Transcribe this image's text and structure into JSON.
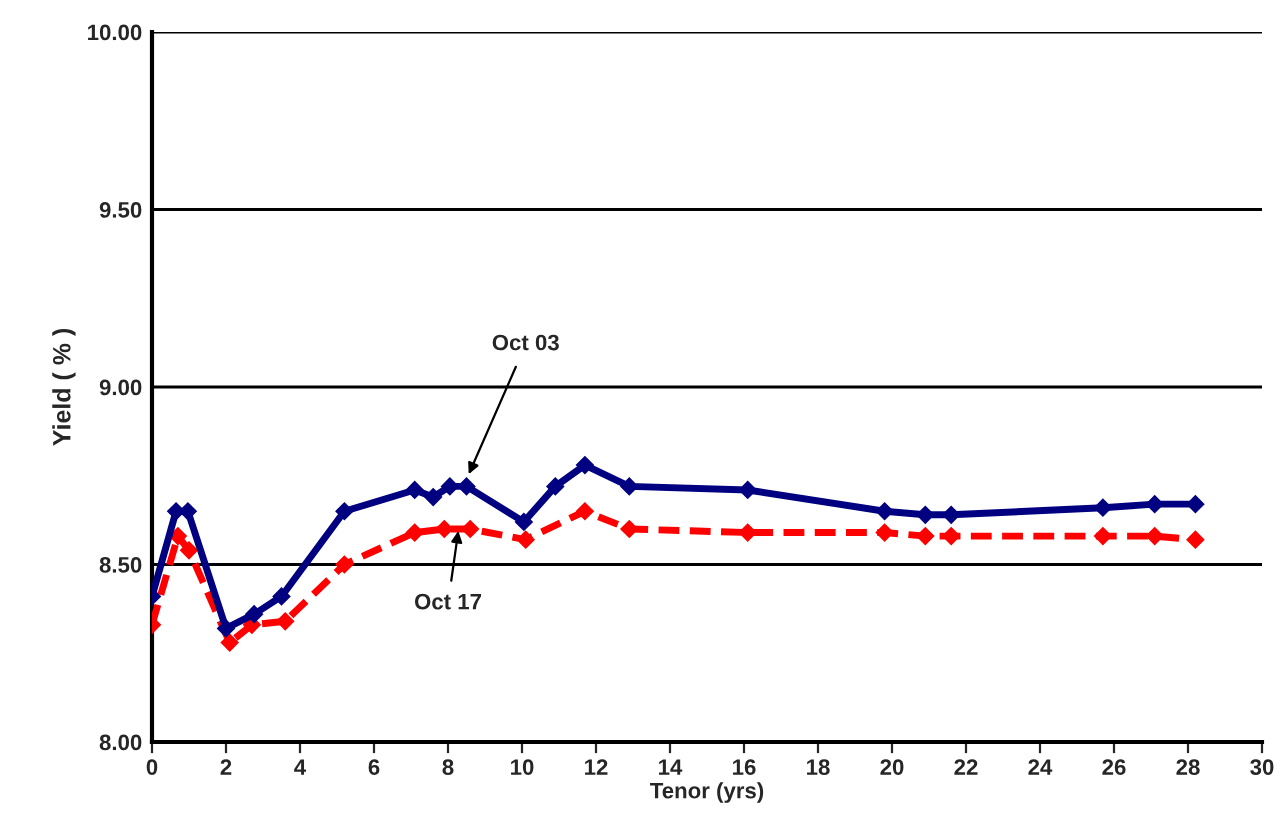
{
  "chart_data": {
    "type": "line",
    "xlabel": "Tenor (yrs)",
    "ylabel": "Yield ( % )",
    "xlim": [
      0,
      30
    ],
    "xticks": [
      0,
      2,
      4,
      6,
      8,
      10,
      12,
      14,
      16,
      18,
      20,
      22,
      24,
      26,
      28,
      30
    ],
    "ylim": [
      8.0,
      10.0
    ],
    "yticks": [
      {
        "value": 8.0,
        "label": "8.00"
      },
      {
        "value": 8.5,
        "label": "8.50"
      },
      {
        "value": 9.0,
        "label": "9.00"
      },
      {
        "value": 9.5,
        "label": "9.50"
      },
      {
        "value": 10.0,
        "label": "10.00"
      }
    ],
    "grid": "y",
    "marker": "diamond",
    "series": [
      {
        "color": "#000080",
        "line_style": "solid",
        "x": [
          0,
          0.65,
          0.97,
          2.0,
          2.76,
          3.5,
          5.2,
          7.1,
          7.6,
          8.05,
          8.5,
          10.05,
          10.9,
          11.7,
          12.9,
          16.1,
          19.8,
          20.9,
          21.6,
          25.7,
          27.1,
          28.2
        ],
        "values": [
          8.41,
          8.65,
          8.65,
          8.32,
          8.36,
          8.41,
          8.65,
          8.71,
          8.69,
          8.72,
          8.72,
          8.62,
          8.72,
          8.78,
          8.72,
          8.71,
          8.65,
          8.64,
          8.64,
          8.66,
          8.67,
          8.67
        ]
      },
      {
        "color": "#ff0000",
        "line_style": "dashed",
        "x": [
          0,
          0.7,
          1.0,
          2.1,
          2.7,
          3.6,
          5.2,
          7.1,
          7.9,
          8.6,
          10.1,
          11.7,
          12.9,
          16.1,
          19.8,
          20.9,
          21.6,
          25.7,
          27.1,
          28.2
        ],
        "values": [
          8.33,
          8.58,
          8.54,
          8.28,
          8.33,
          8.34,
          8.5,
          8.59,
          8.6,
          8.6,
          8.57,
          8.65,
          8.6,
          8.59,
          8.59,
          8.58,
          8.58,
          8.58,
          8.58,
          8.57
        ]
      }
    ],
    "annotations": [
      {
        "text": "Oct 03",
        "x": 8.5,
        "y": 8.74
      },
      {
        "text": "Oct 17",
        "x": 8.3,
        "y": 8.61
      }
    ]
  }
}
